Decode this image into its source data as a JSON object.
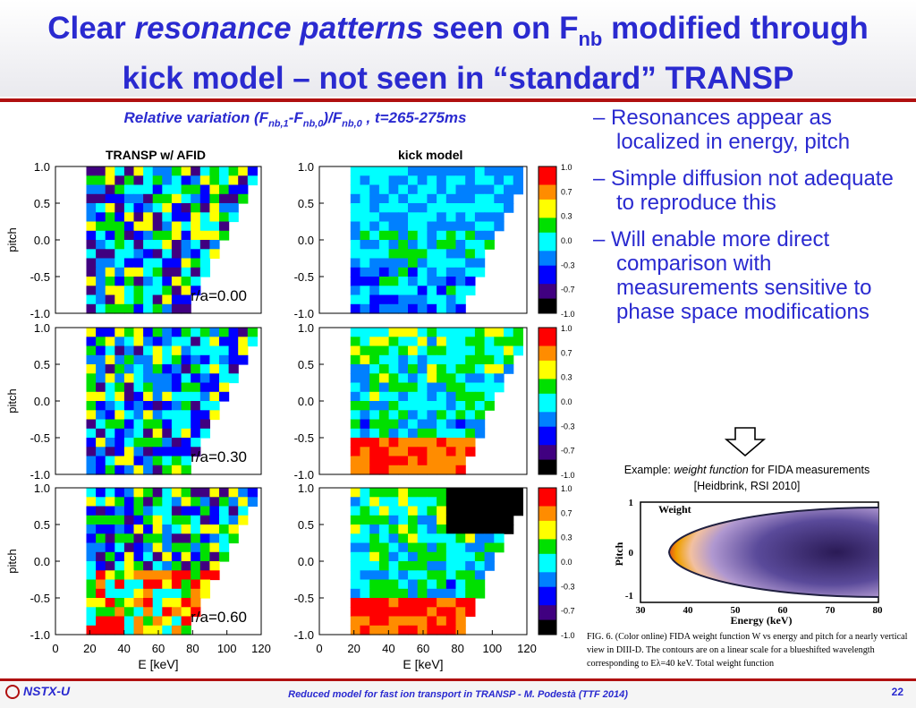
{
  "slide": {
    "title_line1_a": "Clear ",
    "title_line1_italic": "resonance patterns",
    "title_line1_b": " seen on F",
    "title_line1_sub": "nb",
    "title_line1_c": " modified through",
    "title_line2": "kick model – not seen in “standard” TRANSP",
    "page_number": "22"
  },
  "figure": {
    "subtitle_a": "Relative variation (F",
    "subtitle_sub1": "nb,1",
    "subtitle_b": "-F",
    "subtitle_sub2": "nb,0",
    "subtitle_c": ")/F",
    "subtitle_sub3": "nb,0",
    "subtitle_d": " , t=265-275ms",
    "col_left_title": "TRANSP w/ AFID",
    "col_right_title": "kick model",
    "ylabel": "pitch",
    "xlabel": "E [keV]",
    "row_labels": [
      "r/a=0.00",
      "r/a=0.30",
      "r/a=0.60"
    ],
    "y_ticks": [
      "1.0",
      "0.5",
      "0.0",
      "-0.5",
      "-1.0"
    ],
    "x_ticks": [
      "0",
      "20",
      "40",
      "60",
      "80",
      "100",
      "120"
    ],
    "colorbar_ticks": [
      "1.0",
      "0.7",
      "0.3",
      "0.0",
      "-0.3",
      "-0.7",
      "-1.0"
    ],
    "colormap": [
      "#ff0000",
      "#ff8c00",
      "#ffff00",
      "#00e000",
      "#00ffff",
      "#0080ff",
      "#0000ff",
      "#400080",
      "#000000"
    ]
  },
  "bullets": [
    "– Resonances appear as localized in energy, pitch",
    "– Simple diffusion not adequate to reproduce this",
    "– Will enable more direct comparison with measurements sensitive to phase space modifications"
  ],
  "example": {
    "prefix": "Example: ",
    "italic": "weight function",
    "suffix": " for FIDA measurements",
    "ref": "[Heidbrink, RSI 2010]"
  },
  "inset": {
    "legend": "Weight",
    "ylabel": "Pitch",
    "xlabel": "Energy (keV)",
    "y_ticks": [
      "1",
      "0",
      "-1"
    ],
    "x_ticks": [
      "30",
      "40",
      "50",
      "60",
      "70",
      "80"
    ],
    "caption": "FIG. 6. (Color online) FIDA weight function W vs energy and pitch for a nearly vertical view in DIII-D. The contours are on a linear scale for a blueshifted wavelength corresponding to Eλ=40 keV. Total weight function"
  },
  "footer": {
    "logo": "NSTX-U",
    "text": "Reduced model for fast ion transport in TRANSP - M. Podestà (TTF 2014)"
  }
}
